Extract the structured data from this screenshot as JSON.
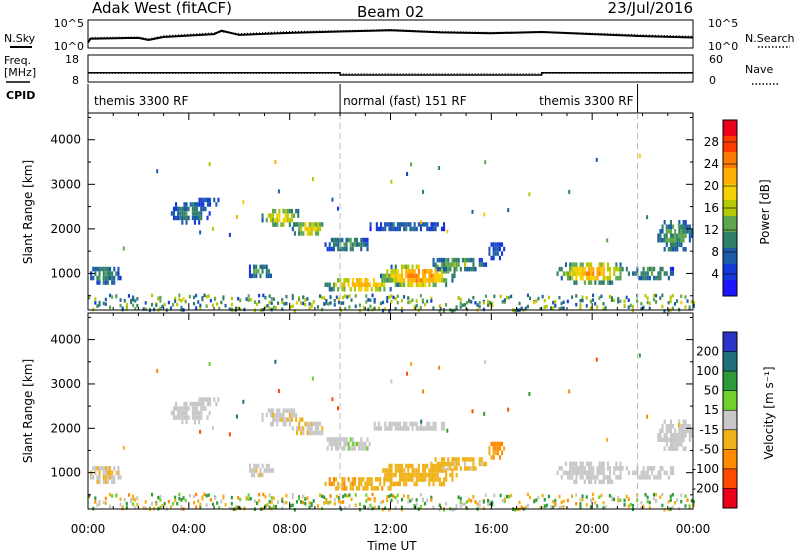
{
  "header": {
    "radar": "Adak West (fitACF)",
    "beam": "Beam 02",
    "date": "23/Jul/2016"
  },
  "noise_panel": {
    "left_label": "N.Sky",
    "right_label": "N.Search",
    "ytick_top": "10^5",
    "ytick_bottom": "10^0"
  },
  "freq_panel": {
    "left_label_1": "Freq.",
    "left_label_2": "[MHz]",
    "right_label": "Nave",
    "left_tick_top": "18",
    "left_tick_bottom": "8",
    "right_tick_top": "60",
    "right_tick_bottom": "0"
  },
  "cpid_panel": {
    "label": "CPID",
    "modes": [
      {
        "name": "themis 3300 RF",
        "start": 0.0,
        "end": 10.0
      },
      {
        "name": "normal (fast) 151 RF",
        "start": 10.0,
        "end": 18.0
      },
      {
        "name": "themis 3300 RF",
        "start": 18.0,
        "end": 21.8
      }
    ]
  },
  "power_panel": {
    "ylabel": "Slant Range [km]",
    "colorbar_label": "Power [dB]",
    "colorbar_ticks": [
      "28",
      "24",
      "20",
      "16",
      "12",
      "8",
      "4"
    ],
    "colorbar_colors": [
      "#e8001c",
      "#ff3a00",
      "#ff7a00",
      "#ffb000",
      "#f4d000",
      "#b5c800",
      "#5fa74e",
      "#2f7f6a",
      "#1c5ba8",
      "#1538d8",
      "#1f14ff"
    ]
  },
  "velocity_panel": {
    "ylabel": "Slant Range [km]",
    "colorbar_label": "Velocity [m s⁻¹]",
    "colorbar_ticks": [
      "200",
      "100",
      "50",
      "15",
      "-15",
      "-50",
      "-100",
      "-200"
    ],
    "colorbar_colors": [
      "#2a35c8",
      "#1f6f7a",
      "#2d9a3a",
      "#6fd12c",
      "#c8c8c8",
      "#f0b21a",
      "#ff8a00",
      "#ff4a00",
      "#e8001c"
    ]
  },
  "chart_data": {
    "type": "heatmap",
    "title": "Adak West (fitACF)  Beam 02  23/Jul/2016",
    "xlabel": "Time UT",
    "ylabel": "Slant Range [km]",
    "x_ticks": [
      "00:00",
      "04:00",
      "08:00",
      "12:00",
      "16:00",
      "20:00",
      "00:00"
    ],
    "x_range_hours": [
      0,
      24
    ],
    "y_ticks": [
      1000,
      2000,
      3000,
      4000
    ],
    "y_range_km": [
      180,
      4600
    ],
    "mode_change_hours": [
      10.0,
      21.8
    ],
    "echo_regions": [
      {
        "t0": 0.0,
        "t1": 1.3,
        "r0": 800,
        "r1": 1250,
        "power_db": 10,
        "velocity": -10
      },
      {
        "t0": 3.2,
        "t1": 4.8,
        "r0": 2150,
        "r1": 2700,
        "power_db": 9,
        "velocity": 0
      },
      {
        "t0": 4.3,
        "t1": 5.2,
        "r0": 2500,
        "r1": 2800,
        "power_db": 5,
        "velocity": 0
      },
      {
        "t0": 6.8,
        "t1": 8.5,
        "r0": 2050,
        "r1": 2550,
        "power_db": 16,
        "velocity": -5
      },
      {
        "t0": 8.0,
        "t1": 9.4,
        "r0": 1850,
        "r1": 2250,
        "power_db": 17,
        "velocity": -8
      },
      {
        "t0": 9.3,
        "t1": 11.2,
        "r0": 1500,
        "r1": 1900,
        "power_db": 10,
        "velocity": 5
      },
      {
        "t0": 11.0,
        "t1": 14.2,
        "r0": 1950,
        "r1": 2250,
        "power_db": 6,
        "velocity": 0
      },
      {
        "t0": 6.3,
        "t1": 7.3,
        "r0": 900,
        "r1": 1300,
        "power_db": 10,
        "velocity": -5
      },
      {
        "t0": 9.3,
        "t1": 12.3,
        "r0": 600,
        "r1": 1000,
        "power_db": 20,
        "velocity": -40
      },
      {
        "t0": 11.5,
        "t1": 14.6,
        "r0": 700,
        "r1": 1300,
        "power_db": 22,
        "velocity": -35
      },
      {
        "t0": 13.5,
        "t1": 15.8,
        "r0": 1050,
        "r1": 1450,
        "power_db": 12,
        "velocity": -25
      },
      {
        "t0": 15.8,
        "t1": 16.5,
        "r0": 1350,
        "r1": 1800,
        "power_db": 5,
        "velocity": -60
      },
      {
        "t0": 18.5,
        "t1": 21.5,
        "r0": 800,
        "r1": 1350,
        "power_db": 20,
        "velocity": 0
      },
      {
        "t0": 21.5,
        "t1": 23.3,
        "r0": 850,
        "r1": 1250,
        "power_db": 10,
        "velocity": 0
      },
      {
        "t0": 22.5,
        "t1": 24.0,
        "r0": 1500,
        "r1": 2300,
        "power_db": 11,
        "velocity": 0
      }
    ],
    "freq_mhz": [
      {
        "start": 0.0,
        "end": 10.0,
        "value": 11.3
      },
      {
        "start": 10.0,
        "end": 18.0,
        "value": 10.3
      },
      {
        "start": 18.0,
        "end": 24.0,
        "value": 11.3
      }
    ],
    "freq_range_mhz": [
      8,
      18
    ],
    "nave": [
      {
        "start": 0.0,
        "end": 10.0,
        "value": 18
      },
      {
        "start": 10.0,
        "end": 18.0,
        "value": 17
      },
      {
        "start": 18.0,
        "end": 24.0,
        "value": 18
      }
    ],
    "nave_range": [
      0,
      60
    ],
    "noise_log10": [
      {
        "t": 0.0,
        "sky": 0.6,
        "search": 0.8
      },
      {
        "t": 0.1,
        "sky": 1.5,
        "search": 1.8
      },
      {
        "t": 2.0,
        "sky": 1.7,
        "search": 1.9
      },
      {
        "t": 2.4,
        "sky": 1.2,
        "search": 1.5
      },
      {
        "t": 3.0,
        "sky": 1.9,
        "search": 2.2
      },
      {
        "t": 5.0,
        "sky": 2.6,
        "search": 2.9
      },
      {
        "t": 5.3,
        "sky": 3.4,
        "search": 3.1
      },
      {
        "t": 6.0,
        "sky": 2.4,
        "search": 2.7
      },
      {
        "t": 8.0,
        "sky": 2.9,
        "search": 3.2
      },
      {
        "t": 10.0,
        "sky": 3.2,
        "search": 3.4
      },
      {
        "t": 12.0,
        "sky": 3.5,
        "search": 3.7
      },
      {
        "t": 14.0,
        "sky": 3.0,
        "search": 3.2
      },
      {
        "t": 16.0,
        "sky": 2.8,
        "search": 3.0
      },
      {
        "t": 18.0,
        "sky": 3.1,
        "search": 3.2
      },
      {
        "t": 20.0,
        "sky": 2.6,
        "search": 2.8
      },
      {
        "t": 22.0,
        "sky": 2.1,
        "search": 2.4
      },
      {
        "t": 24.0,
        "sky": 1.8,
        "search": 2.1
      }
    ],
    "noise_range_log10": [
      0,
      5
    ]
  }
}
